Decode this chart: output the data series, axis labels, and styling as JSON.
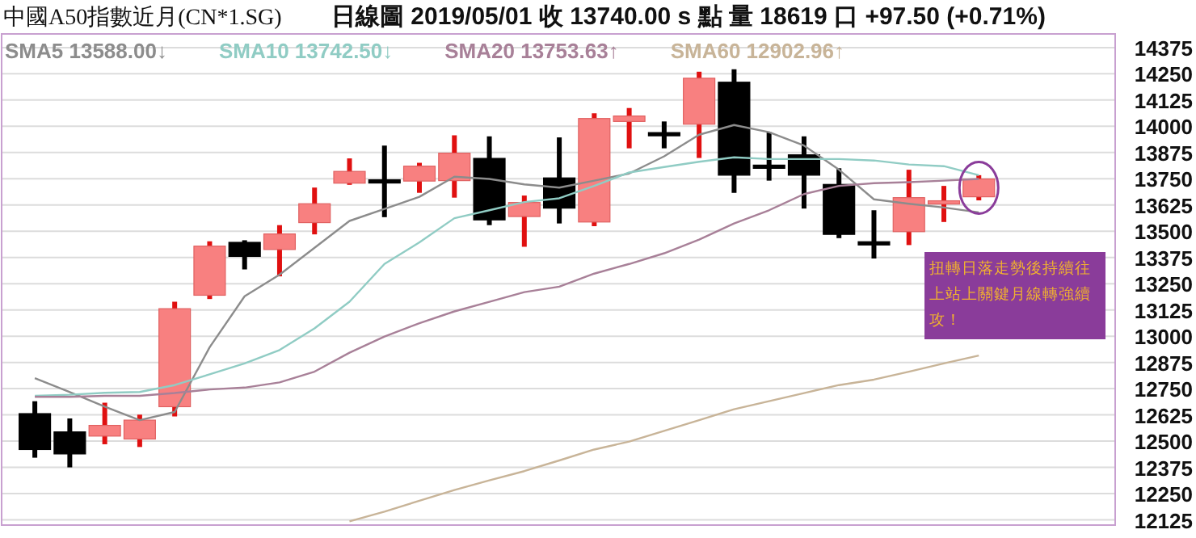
{
  "chart_data": {
    "type": "candlestick",
    "title": "中國A50指數近月(CN*1.SG)",
    "subtitle": "日線圖 2019/05/01 收 13740.00 s 點 量 18619 口 +97.50 (+0.71%)",
    "categories": [
      null,
      null,
      null,
      null,
      null,
      null,
      null,
      null,
      null,
      null,
      null,
      null,
      null,
      null,
      null,
      null,
      null,
      null,
      null,
      null,
      null,
      null,
      null,
      null,
      null,
      null,
      null,
      null
    ],
    "ohlc": [
      [
        12631,
        12690,
        12421,
        12460
      ],
      [
        12544,
        12608,
        12375,
        12439
      ],
      [
        12524,
        12683,
        12485,
        12575
      ],
      [
        12510,
        12626,
        12472,
        12600
      ],
      [
        12664,
        13164,
        12618,
        13131
      ],
      [
        13195,
        13452,
        13177,
        13429
      ],
      [
        13447,
        13457,
        13318,
        13380
      ],
      [
        13413,
        13529,
        13285,
        13487
      ],
      [
        13541,
        13708,
        13485,
        13631
      ],
      [
        13729,
        13847,
        13721,
        13785
      ],
      [
        13745,
        13908,
        13567,
        13740
      ],
      [
        13739,
        13826,
        13683,
        13810
      ],
      [
        13741,
        13957,
        13660,
        13872
      ],
      [
        13847,
        13952,
        13529,
        13554
      ],
      [
        13570,
        13670,
        13426,
        13637
      ],
      [
        13754,
        13947,
        13537,
        13610
      ],
      [
        13544,
        14062,
        13524,
        14037
      ],
      [
        14023,
        14087,
        13895,
        14049
      ],
      [
        13970,
        14023,
        13895,
        13965
      ],
      [
        14010,
        14260,
        13849,
        14229
      ],
      [
        14210,
        14272,
        13683,
        13767
      ],
      [
        13815,
        13972,
        13741,
        13810
      ],
      [
        13864,
        13952,
        13608,
        13767
      ],
      [
        13723,
        13800,
        13467,
        13485
      ],
      [
        13450,
        13600,
        13370,
        13445
      ],
      [
        13498,
        13793,
        13434,
        13660
      ],
      [
        13635,
        13716,
        13544,
        13645
      ],
      [
        13664,
        13767,
        13647,
        13749
      ]
    ],
    "series": [
      {
        "type": "line",
        "name": "SMA5 13588.00↓",
        "color": "#8c8c8c",
        "values": [
          12800,
          12734,
          12664,
          12600,
          12639,
          12947,
          13190,
          13293,
          13421,
          13549,
          13606,
          13664,
          13760,
          13749,
          13723,
          13708,
          13741,
          13775,
          13857,
          13960,
          14006,
          13972,
          13908,
          13793,
          13652,
          13631,
          13613,
          13590
        ]
      },
      {
        "type": "line",
        "name": "SMA10 13742.50↓",
        "color": "#90ccc4",
        "values": [
          12716,
          12721,
          12730,
          12734,
          12767,
          12818,
          12870,
          12934,
          13037,
          13164,
          13344,
          13447,
          13562,
          13600,
          13639,
          13657,
          13716,
          13780,
          13806,
          13831,
          13852,
          13844,
          13844,
          13844,
          13837,
          13818,
          13810,
          13767
        ]
      },
      {
        "type": "line",
        "name": "SMA20 13753.63↑",
        "color": "#a88098",
        "values": [
          12711,
          12711,
          12716,
          12716,
          12729,
          12746,
          12755,
          12780,
          12831,
          12921,
          12998,
          13062,
          13118,
          13164,
          13210,
          13236,
          13298,
          13344,
          13395,
          13460,
          13537,
          13600,
          13677,
          13716,
          13729,
          13734,
          13741,
          13749
        ]
      },
      {
        "type": "line",
        "name": "SMA60 12902.96↑",
        "color": "#c8b498",
        "values": [
          null,
          null,
          null,
          null,
          null,
          null,
          null,
          null,
          null,
          12118,
          12164,
          12216,
          12267,
          12313,
          12357,
          12408,
          12460,
          12498,
          12549,
          12600,
          12652,
          12690,
          12729,
          12767,
          12793,
          12831,
          12870,
          12908
        ]
      }
    ],
    "ylim": [
      12100,
      14440
    ],
    "yticks": [
      12125,
      12250,
      12375,
      12500,
      12625,
      12750,
      12875,
      13000,
      13125,
      13250,
      13375,
      13500,
      13625,
      13750,
      13875,
      14000,
      14125,
      14250,
      14375
    ],
    "grid": "y",
    "legend": "top left",
    "annotations": [
      "扭轉日落走勢後持續往上站上關鍵月線轉強續攻！"
    ]
  }
}
